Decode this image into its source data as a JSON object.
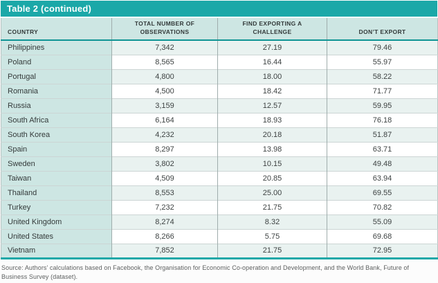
{
  "table": {
    "title": "Table 2 (continued)",
    "columns": [
      "COUNTRY",
      "TOTAL NUMBER OF OBSERVATIONS",
      "FIND EXPORTING A CHALLENGE",
      "DON’T EXPORT"
    ],
    "rows": [
      {
        "country": "Philippines",
        "observations": "7,342",
        "challenge": "27.19",
        "dont_export": "79.46"
      },
      {
        "country": "Poland",
        "observations": "8,565",
        "challenge": "16.44",
        "dont_export": "55.97"
      },
      {
        "country": "Portugal",
        "observations": "4,800",
        "challenge": "18.00",
        "dont_export": "58.22"
      },
      {
        "country": "Romania",
        "observations": "4,500",
        "challenge": "18.42",
        "dont_export": "71.77"
      },
      {
        "country": "Russia",
        "observations": "3,159",
        "challenge": "12.57",
        "dont_export": "59.95"
      },
      {
        "country": "South Africa",
        "observations": "6,164",
        "challenge": "18.93",
        "dont_export": "76.18"
      },
      {
        "country": "South Korea",
        "observations": "4,232",
        "challenge": "20.18",
        "dont_export": "51.87"
      },
      {
        "country": "Spain",
        "observations": "8,297",
        "challenge": "13.98",
        "dont_export": "63.71"
      },
      {
        "country": "Sweden",
        "observations": "3,802",
        "challenge": "10.15",
        "dont_export": "49.48"
      },
      {
        "country": "Taiwan",
        "observations": "4,509",
        "challenge": "20.85",
        "dont_export": "63.94"
      },
      {
        "country": "Thailand",
        "observations": "8,553",
        "challenge": "25.00",
        "dont_export": "69.55"
      },
      {
        "country": "Turkey",
        "observations": "7,232",
        "challenge": "21.75",
        "dont_export": "70.82"
      },
      {
        "country": "United Kingdom",
        "observations": "8,274",
        "challenge": "8.32",
        "dont_export": "55.09"
      },
      {
        "country": "United States",
        "observations": "8,266",
        "challenge": "5.75",
        "dont_export": "69.68"
      },
      {
        "country": "Vietnam",
        "observations": "7,852",
        "challenge": "21.75",
        "dont_export": "72.95"
      }
    ]
  },
  "source_note": "Source: Authors’ calculations based on Facebook, the Organisation for Economic Co-operation and Development, and the World Bank, Future of Business Survey (dataset).",
  "colors": {
    "teal_accent": "#1BA8A8",
    "header_rule": "#0F9494",
    "header_bg": "#CDE6E3",
    "country_column_bg": "#CDE6E3",
    "tint_row_bg": "#E9F2F0",
    "column_border": "#9FADAC",
    "row_border": "#CCD5D4"
  }
}
